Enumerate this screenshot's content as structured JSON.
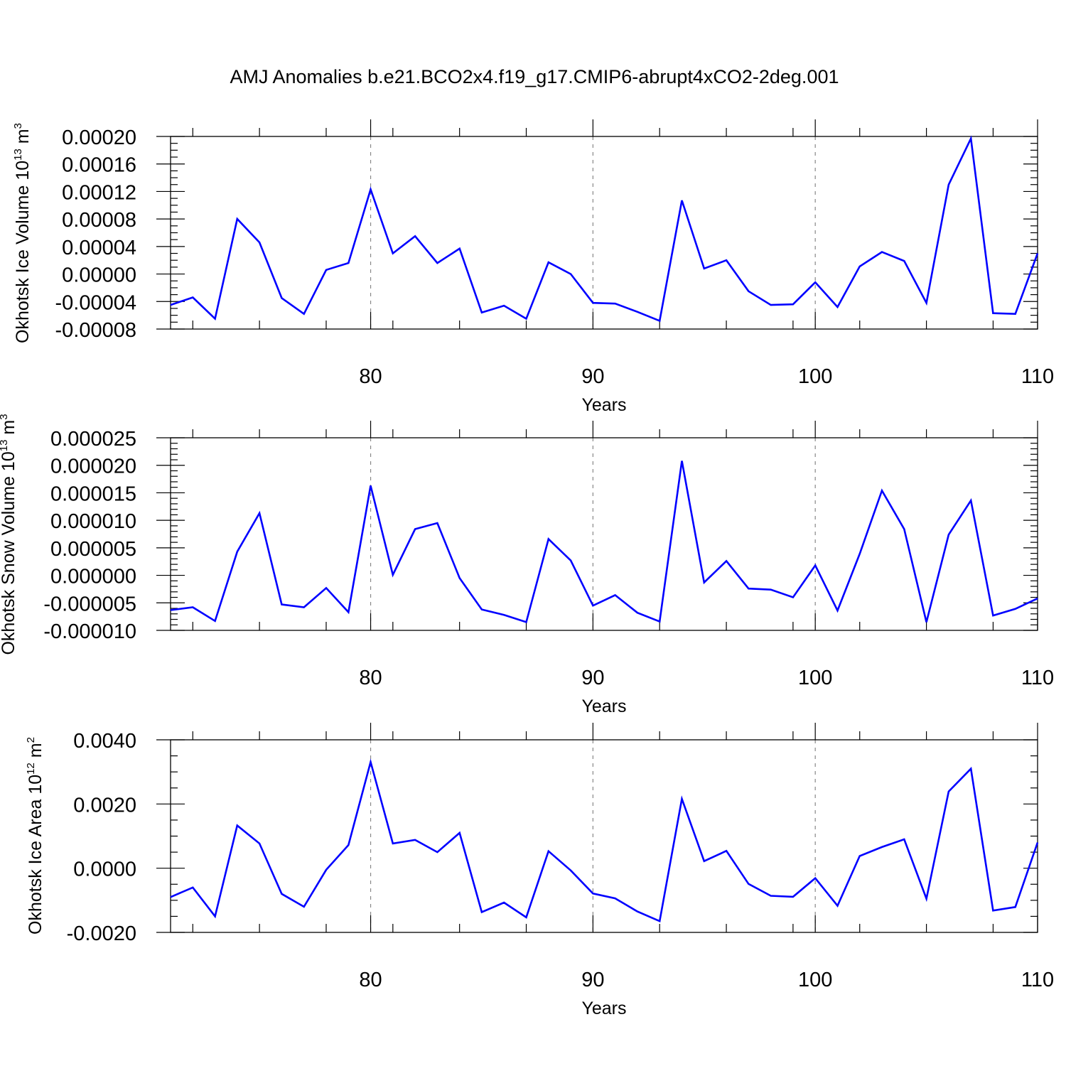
{
  "chart_data": [
    {
      "type": "line",
      "title": "AMJ Anomalies b.e21.BCO2x4.f19_g17.CMIP6-abrupt4xCO2-2deg.001",
      "xlabel": "Years",
      "ylabel": "Okhotsk Ice Volume 10",
      "ylabel_exp": "13",
      "ylabel_unit": " m",
      "ylabel_unit_exp": "3",
      "xlim": [
        71,
        110
      ],
      "ylim": [
        -8e-05,
        0.0002
      ],
      "xticks": [
        80,
        90,
        100,
        110
      ],
      "xtick_labels": [
        "80",
        "90",
        "100",
        "110"
      ],
      "yticks": [
        -8e-05,
        -4e-05,
        0.0,
        4e-05,
        8e-05,
        0.00012,
        0.00016,
        0.0002
      ],
      "ytick_labels": [
        "-0.00008",
        "-0.00004",
        "0.00000",
        "0.00004",
        "0.00008",
        "0.00012",
        "0.00016",
        "0.00020"
      ],
      "grid": "dashed vertical at major x ticks",
      "color": "#0000ff",
      "x": [
        71,
        72,
        73,
        74,
        75,
        76,
        77,
        78,
        79,
        80,
        81,
        82,
        83,
        84,
        85,
        86,
        87,
        88,
        89,
        90,
        91,
        92,
        93,
        94,
        95,
        96,
        97,
        98,
        99,
        100,
        101,
        102,
        103,
        104,
        105,
        106,
        107,
        108,
        109,
        110
      ],
      "y": [
        -4.5e-05,
        -3.4e-05,
        -6.5e-05,
        8e-05,
        4.6e-05,
        -3.5e-05,
        -5.8e-05,
        6e-06,
        1.6e-05,
        0.000123,
        3e-05,
        5.5e-05,
        1.6e-05,
        3.7e-05,
        -5.6e-05,
        -4.6e-05,
        -6.5e-05,
        1.7e-05,
        0.0,
        -4.2e-05,
        -4.3e-05,
        -5.5e-05,
        -6.8e-05,
        0.000107,
        8e-06,
        2e-05,
        -2.5e-05,
        -4.5e-05,
        -4.4e-05,
        -1.2e-05,
        -4.8e-05,
        1.1e-05,
        3.2e-05,
        1.9e-05,
        -4.2e-05,
        0.00013,
        0.000197,
        -5.7e-05,
        -5.8e-05,
        3e-05
      ]
    },
    {
      "type": "line",
      "xlabel": "Years",
      "ylabel": "Okhotsk Snow Volume 10",
      "ylabel_exp": "13",
      "ylabel_unit": " m",
      "ylabel_unit_exp": "3",
      "xlim": [
        71,
        110
      ],
      "ylim": [
        -1e-05,
        2.5e-05
      ],
      "xticks": [
        80,
        90,
        100,
        110
      ],
      "xtick_labels": [
        "80",
        "90",
        "100",
        "110"
      ],
      "yticks": [
        -1e-05,
        -5e-06,
        0.0,
        5e-06,
        1e-05,
        1.5e-05,
        2e-05,
        2.5e-05
      ],
      "ytick_labels": [
        "-0.000010",
        "-0.000005",
        "0.000000",
        "0.000005",
        "0.000010",
        "0.000015",
        "0.000020",
        "0.000025"
      ],
      "grid": "dashed vertical at major x ticks",
      "color": "#0000ff",
      "x": [
        71,
        72,
        73,
        74,
        75,
        76,
        77,
        78,
        79,
        80,
        81,
        82,
        83,
        84,
        85,
        86,
        87,
        88,
        89,
        90,
        91,
        92,
        93,
        94,
        95,
        96,
        97,
        98,
        99,
        100,
        101,
        102,
        103,
        104,
        105,
        106,
        107,
        108,
        109,
        110
      ],
      "y": [
        -6.3e-06,
        -5.8e-06,
        -8.3e-06,
        4.3e-06,
        1.13e-05,
        -5.3e-06,
        -5.8e-06,
        -2.3e-06,
        -6.7e-06,
        1.63e-05,
        1e-07,
        8.4e-06,
        9.5e-06,
        -5e-07,
        -6.2e-06,
        -7.2e-06,
        -8.5e-06,
        6.6e-06,
        2.7e-06,
        -5.5e-06,
        -3.6e-06,
        -6.8e-06,
        -8.4e-06,
        2.08e-05,
        -1.3e-06,
        2.6e-06,
        -2.4e-06,
        -2.6e-06,
        -4e-06,
        1.8e-06,
        -6.4e-06,
        3.9e-06,
        1.54e-05,
        8.4e-06,
        -8.5e-06,
        7.4e-06,
        1.36e-05,
        -7.3e-06,
        -6.1e-06,
        -4.2e-06
      ]
    },
    {
      "type": "line",
      "xlabel": "Years",
      "ylabel": "Okhotsk Ice Area 10",
      "ylabel_exp": "12",
      "ylabel_unit": " m",
      "ylabel_unit_exp": "2",
      "xlim": [
        71,
        110
      ],
      "ylim": [
        -0.002,
        0.004
      ],
      "xticks": [
        80,
        90,
        100,
        110
      ],
      "xtick_labels": [
        "80",
        "90",
        "100",
        "110"
      ],
      "yticks": [
        -0.002,
        0.0,
        0.002,
        0.004
      ],
      "ytick_labels": [
        "-0.0020",
        "0.0000",
        "0.0020",
        "0.0040"
      ],
      "grid": "dashed vertical at major x ticks",
      "color": "#0000ff",
      "x": [
        71,
        72,
        73,
        74,
        75,
        76,
        77,
        78,
        79,
        80,
        81,
        82,
        83,
        84,
        85,
        86,
        87,
        88,
        89,
        90,
        91,
        92,
        93,
        94,
        95,
        96,
        97,
        98,
        99,
        100,
        101,
        102,
        103,
        104,
        105,
        106,
        107,
        108,
        109,
        110
      ],
      "y": [
        -0.0009,
        -0.0006,
        -0.0015,
        0.00133,
        0.00077,
        -0.0008,
        -0.0012,
        -5e-05,
        0.00072,
        0.00331,
        0.00077,
        0.00088,
        0.0005,
        0.0011,
        -0.00137,
        -0.00107,
        -0.00153,
        0.00053,
        -7e-05,
        -0.00079,
        -0.00094,
        -0.00135,
        -0.00165,
        0.00216,
        0.00022,
        0.00054,
        -0.00049,
        -0.00086,
        -0.00089,
        -0.00031,
        -0.00117,
        0.00038,
        0.00066,
        0.0009,
        -0.00095,
        0.00239,
        0.0031,
        -0.00132,
        -0.00121,
        0.0008
      ]
    }
  ]
}
